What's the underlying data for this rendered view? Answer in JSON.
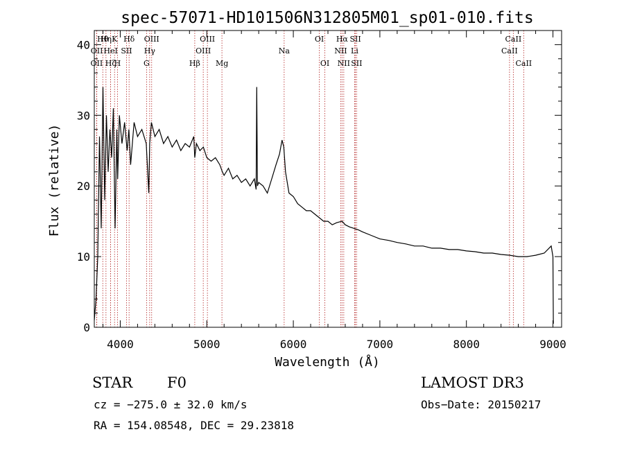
{
  "chart_data": {
    "type": "line",
    "title": "spec-57071-HD101506N312805M01_sp01-010.fits",
    "xlabel": "Wavelength (Å)",
    "ylabel": "Flux (relative)",
    "xlim": [
      3700,
      9100
    ],
    "ylim": [
      0,
      42
    ],
    "xticks": [
      4000,
      5000,
      6000,
      7000,
      8000,
      9000
    ],
    "yticks": [
      0,
      10,
      20,
      30,
      40
    ],
    "series": [
      {
        "name": "spectrum",
        "x": [
          3700,
          3720,
          3740,
          3760,
          3780,
          3800,
          3820,
          3840,
          3860,
          3880,
          3900,
          3920,
          3940,
          3960,
          3970,
          3990,
          4020,
          4050,
          4080,
          4100,
          4120,
          4160,
          4200,
          4250,
          4300,
          4330,
          4340,
          4360,
          4400,
          4450,
          4500,
          4550,
          4600,
          4650,
          4700,
          4750,
          4800,
          4850,
          4861,
          4880,
          4920,
          4960,
          5000,
          5050,
          5100,
          5150,
          5180,
          5200,
          5250,
          5300,
          5350,
          5400,
          5450,
          5500,
          5550,
          5570,
          5577,
          5585,
          5600,
          5650,
          5700,
          5750,
          5800,
          5840,
          5870,
          5890,
          5910,
          5950,
          6000,
          6050,
          6100,
          6150,
          6200,
          6250,
          6300,
          6350,
          6400,
          6450,
          6500,
          6563,
          6600,
          6650,
          6700,
          6750,
          6800,
          6900,
          7000,
          7100,
          7200,
          7300,
          7400,
          7500,
          7600,
          7700,
          7800,
          7900,
          8000,
          8100,
          8200,
          8300,
          8400,
          8500,
          8600,
          8700,
          8800,
          8900,
          8980,
          9000,
          9005
        ],
        "y": [
          1,
          4,
          10,
          27,
          14,
          34,
          18,
          30,
          22,
          28,
          24,
          31,
          14,
          28,
          21,
          30,
          26,
          29,
          25,
          28,
          23,
          29,
          27,
          28,
          26,
          19,
          26,
          29,
          27,
          28,
          26,
          27,
          25.5,
          26.5,
          25,
          26,
          25.5,
          27,
          24,
          26,
          25,
          25.5,
          24,
          23.5,
          24,
          23,
          22,
          21.5,
          22.5,
          21,
          21.5,
          20.5,
          21,
          20,
          21,
          19.5,
          34,
          20,
          20.5,
          20,
          19,
          21,
          23,
          24.5,
          26.5,
          25.5,
          22,
          19,
          18.5,
          17.5,
          17,
          16.5,
          16.5,
          16,
          15.5,
          15,
          15,
          14.5,
          14.8,
          15,
          14.5,
          14.2,
          14,
          13.8,
          13.5,
          13,
          12.5,
          12.3,
          12,
          11.8,
          11.5,
          11.5,
          11.2,
          11.2,
          11,
          11,
          10.8,
          10.7,
          10.5,
          10.5,
          10.3,
          10.2,
          10,
          10,
          10.2,
          10.5,
          11.5,
          10,
          0.5
        ]
      }
    ],
    "line_markers": [
      {
        "label": "OII",
        "wavelength": 3727,
        "row": 2
      },
      {
        "label": "Hθ",
        "wavelength": 3798,
        "row": 0
      },
      {
        "label": "OII",
        "wavelength": 3729,
        "row": 1
      },
      {
        "label": "Hη",
        "wavelength": 3835,
        "row": 0
      },
      {
        "label": "HeI",
        "wavelength": 3889,
        "row": 1
      },
      {
        "label": "Hζ",
        "wavelength": 3889,
        "row": 2
      },
      {
        "label": "K",
        "wavelength": 3934,
        "row": 0
      },
      {
        "label": "SII",
        "wavelength": 4072,
        "row": 1
      },
      {
        "label": "H",
        "wavelength": 3968,
        "row": 2
      },
      {
        "label": "Hδ",
        "wavelength": 4102,
        "row": 0
      },
      {
        "label": "OIII",
        "wavelength": 4363,
        "row": 0
      },
      {
        "label": "Hγ",
        "wavelength": 4340,
        "row": 1
      },
      {
        "label": "G",
        "wavelength": 4304,
        "row": 2
      },
      {
        "label": "Hβ",
        "wavelength": 4861,
        "row": 2
      },
      {
        "label": "OIII",
        "wavelength": 5007,
        "row": 0
      },
      {
        "label": "OIII",
        "wavelength": 4959,
        "row": 1
      },
      {
        "label": "Mg",
        "wavelength": 5175,
        "row": 2
      },
      {
        "label": "Na",
        "wavelength": 5894,
        "row": 1
      },
      {
        "label": "OI",
        "wavelength": 6300,
        "row": 0
      },
      {
        "label": "OI",
        "wavelength": 6364,
        "row": 2
      },
      {
        "label": "Hα",
        "wavelength": 6563,
        "row": 0
      },
      {
        "label": "NII",
        "wavelength": 6548,
        "row": 1
      },
      {
        "label": "NII",
        "wavelength": 6583,
        "row": 2
      },
      {
        "label": "SII",
        "wavelength": 6717,
        "row": 0
      },
      {
        "label": "Li",
        "wavelength": 6708,
        "row": 1
      },
      {
        "label": "SII",
        "wavelength": 6731,
        "row": 2
      },
      {
        "label": "CaII",
        "wavelength": 8542,
        "row": 0
      },
      {
        "label": "CaII",
        "wavelength": 8498,
        "row": 1
      },
      {
        "label": "CaII",
        "wavelength": 8662,
        "row": 2
      }
    ]
  },
  "footer": {
    "object_type": "STAR",
    "subclass": "F0",
    "survey": "LAMOST DR3",
    "cz": "cz = −275.0 ± 32.0 km/s",
    "obs_date": "Obs−Date: 20150217",
    "coords": "RA = 154.08548, DEC =  29.23818"
  },
  "colors": {
    "line_marker": "#b22222",
    "spectrum": "#000000"
  }
}
